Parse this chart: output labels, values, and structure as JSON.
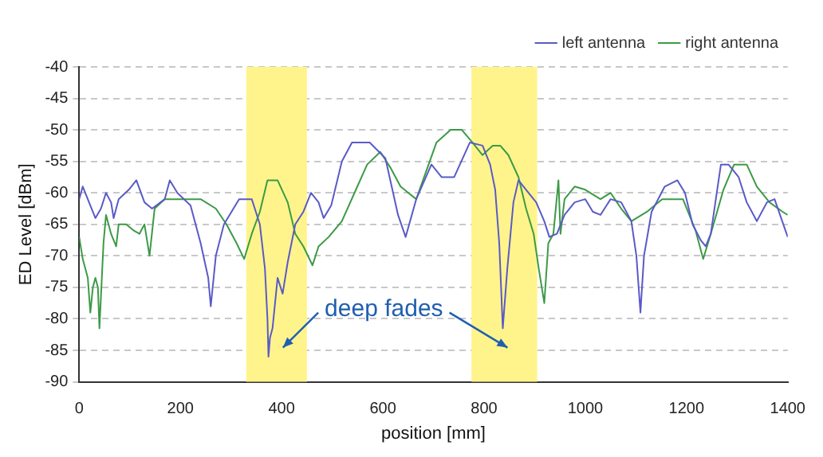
{
  "chart_data": {
    "type": "line",
    "xlabel": "position [mm]",
    "ylabel": "ED Level [dBm]",
    "xlim": [
      0,
      1400
    ],
    "xticks": [
      0,
      200,
      400,
      600,
      800,
      1000,
      1200,
      1400
    ],
    "ylim": [
      -90,
      -40
    ],
    "yticks": [
      -90,
      -85,
      -80,
      -75,
      -70,
      -65,
      -60,
      -55,
      -50,
      -45,
      -40
    ],
    "grid": "y",
    "legend": "top right",
    "marker": "none",
    "line_style": "solid",
    "annotations": [
      "deep fades"
    ],
    "bands": [
      {
        "axis": "x",
        "from": 330,
        "to": 450,
        "color": "#fff48c"
      },
      {
        "axis": "x",
        "from": 775,
        "to": 905,
        "color": "#fff48c"
      }
    ],
    "series": [
      {
        "name": "left antenna",
        "color": "#5a5ac8",
        "x": [
          0,
          7,
          22,
          32,
          43,
          53,
          63,
          68,
          78,
          98,
          113,
          129,
          144,
          169,
          179,
          194,
          220,
          240,
          255,
          260,
          270,
          286,
          301,
          316,
          341,
          357,
          367,
          372,
          374,
          377,
          382,
          392,
          402,
          412,
          427,
          443,
          458,
          473,
          483,
          498,
          519,
          539,
          574,
          605,
          630,
          645,
          666,
          696,
          716,
          741,
          772,
          797,
          812,
          822,
          830,
          837,
          846,
          858,
          868,
          883,
          903,
          919,
          929,
          944,
          959,
          979,
          1000,
          1015,
          1030,
          1050,
          1071,
          1091,
          1101,
          1109,
          1116,
          1131,
          1157,
          1182,
          1197,
          1212,
          1228,
          1238,
          1248,
          1268,
          1283,
          1303,
          1319,
          1339,
          1359,
          1374,
          1400
        ],
        "values": [
          -61,
          -59,
          -62,
          -64,
          -62.5,
          -60,
          -61.5,
          -64,
          -61,
          -59.5,
          -58,
          -61.5,
          -62.5,
          -61,
          -58,
          -60,
          -62,
          -68,
          -73.5,
          -78,
          -70,
          -65,
          -63,
          -61,
          -61,
          -65,
          -72,
          -80,
          -86,
          -83,
          -81.5,
          -73.5,
          -76,
          -71,
          -65,
          -63,
          -60,
          -61.5,
          -64,
          -62,
          -55,
          -52,
          -52,
          -54.5,
          -63.5,
          -67,
          -61,
          -55.5,
          -57.5,
          -57.5,
          -52,
          -52.5,
          -55.5,
          -59.5,
          -68,
          -81.5,
          -72,
          -61.5,
          -58,
          -59.5,
          -61.5,
          -64.5,
          -67,
          -66.5,
          -63.5,
          -61.5,
          -61,
          -63,
          -63.5,
          -61,
          -61.5,
          -64.5,
          -70,
          -79,
          -70,
          -63,
          -59,
          -58,
          -60,
          -65,
          -67.5,
          -68.5,
          -66.5,
          -55.5,
          -55.5,
          -57.5,
          -61.5,
          -64.5,
          -61.5,
          -61,
          -67
        ]
      },
      {
        "name": "right antenna",
        "color": "#3c9a46",
        "x": [
          0,
          7,
          17,
          22,
          27,
          32,
          37,
          40,
          48,
          53,
          63,
          73,
          78,
          93,
          108,
          119,
          129,
          139,
          149,
          169,
          200,
          240,
          270,
          291,
          311,
          326,
          341,
          357,
          372,
          392,
          412,
          427,
          443,
          461,
          473,
          493,
          519,
          544,
          569,
          595,
          615,
          635,
          666,
          706,
          734,
          756,
          777,
          797,
          817,
          832,
          848,
          868,
          883,
          898,
          908,
          919,
          927,
          937,
          947,
          951,
          959,
          979,
          1000,
          1030,
          1050,
          1071,
          1091,
          1122,
          1152,
          1193,
          1218,
          1233,
          1248,
          1273,
          1294,
          1319,
          1339,
          1364,
          1390,
          1400
        ],
        "values": [
          -67,
          -70.5,
          -73.5,
          -79,
          -75,
          -73.5,
          -75,
          -81.5,
          -68,
          -63.5,
          -66.5,
          -68.5,
          -65,
          -65,
          -66,
          -66.5,
          -65,
          -70,
          -62.5,
          -61,
          -61,
          -61,
          -62.5,
          -65,
          -68,
          -70.5,
          -66.5,
          -63,
          -58,
          -58,
          -61.5,
          -66.5,
          -68.5,
          -71.5,
          -68.5,
          -67,
          -64.5,
          -60,
          -55.5,
          -53.5,
          -56,
          -59,
          -61,
          -52,
          -50,
          -50,
          -52,
          -54,
          -52.5,
          -52.5,
          -54,
          -57.5,
          -62.5,
          -66.5,
          -72,
          -77.5,
          -68,
          -66.5,
          -58,
          -66.5,
          -61,
          -59,
          -59.5,
          -61,
          -60,
          -62.5,
          -64.5,
          -63,
          -61,
          -61,
          -66,
          -70.5,
          -66.5,
          -59.5,
          -55.5,
          -55.5,
          -59,
          -61.5,
          -63,
          -63.5
        ]
      }
    ]
  }
}
